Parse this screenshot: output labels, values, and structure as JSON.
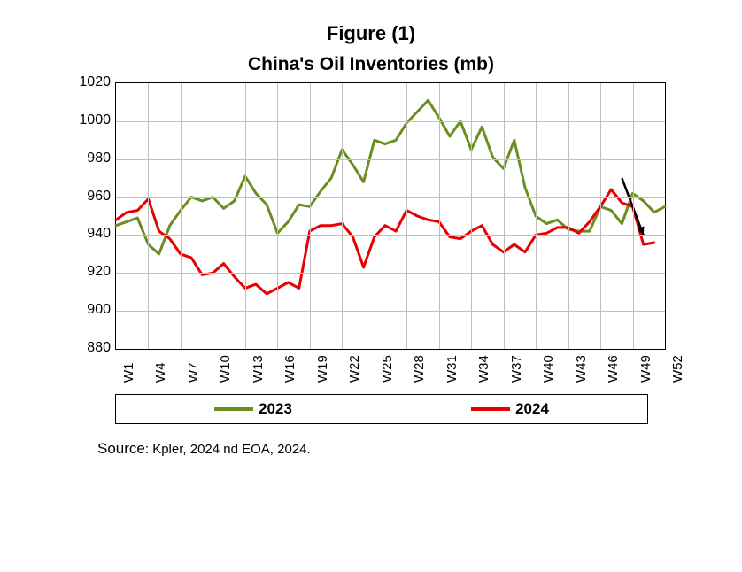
{
  "figure_label": "Figure (1)",
  "chart": {
    "type": "line",
    "title": "China's Oil Inventories (mb)",
    "ylim": [
      880,
      1020
    ],
    "ytick_step": 20,
    "yticks": [
      880,
      900,
      920,
      940,
      960,
      980,
      1000,
      1020
    ],
    "xticks": [
      "W1",
      "W4",
      "W7",
      "W10",
      "W13",
      "W16",
      "W19",
      "W22",
      "W25",
      "W28",
      "W31",
      "W34",
      "W37",
      "W40",
      "W43",
      "W46",
      "W49",
      "W52"
    ],
    "x_count": 52,
    "background_color": "#ffffff",
    "grid_color": "#bfbfbf",
    "border_color": "#000000",
    "line_width": 3,
    "series": [
      {
        "name": "2023",
        "color": "#6b8e23",
        "values": [
          945,
          947,
          949,
          935,
          930,
          945,
          953,
          960,
          958,
          960,
          954,
          958,
          971,
          962,
          956,
          941,
          947,
          956,
          955,
          963,
          970,
          985,
          977,
          968,
          990,
          988,
          990,
          999,
          1005,
          1011,
          1002,
          992,
          1000,
          985,
          997,
          981,
          975,
          990,
          965,
          950,
          946,
          948,
          943,
          942,
          942,
          955,
          953,
          946,
          962,
          958,
          952,
          955
        ]
      },
      {
        "name": "2024",
        "color": "#e60000",
        "values": [
          948,
          952,
          953,
          959,
          942,
          938,
          930,
          928,
          919,
          920,
          925,
          918,
          912,
          914,
          909,
          912,
          915,
          912,
          942,
          945,
          945,
          946,
          939,
          923,
          939,
          945,
          942,
          953,
          950,
          948,
          947,
          939,
          938,
          942,
          945,
          935,
          931,
          935,
          931,
          940,
          941,
          944,
          944,
          941,
          947,
          955,
          964,
          957,
          955,
          935,
          936
        ]
      }
    ],
    "legend_labels": [
      "2023",
      "2024"
    ],
    "annotation_arrow": {
      "from_week": 48,
      "from_value": 970,
      "to_week": 50,
      "to_value": 940,
      "color": "#000000"
    }
  },
  "source_line": {
    "prefix": "Source",
    "text": ": Kpler, 2024 nd EOA, 2024."
  }
}
